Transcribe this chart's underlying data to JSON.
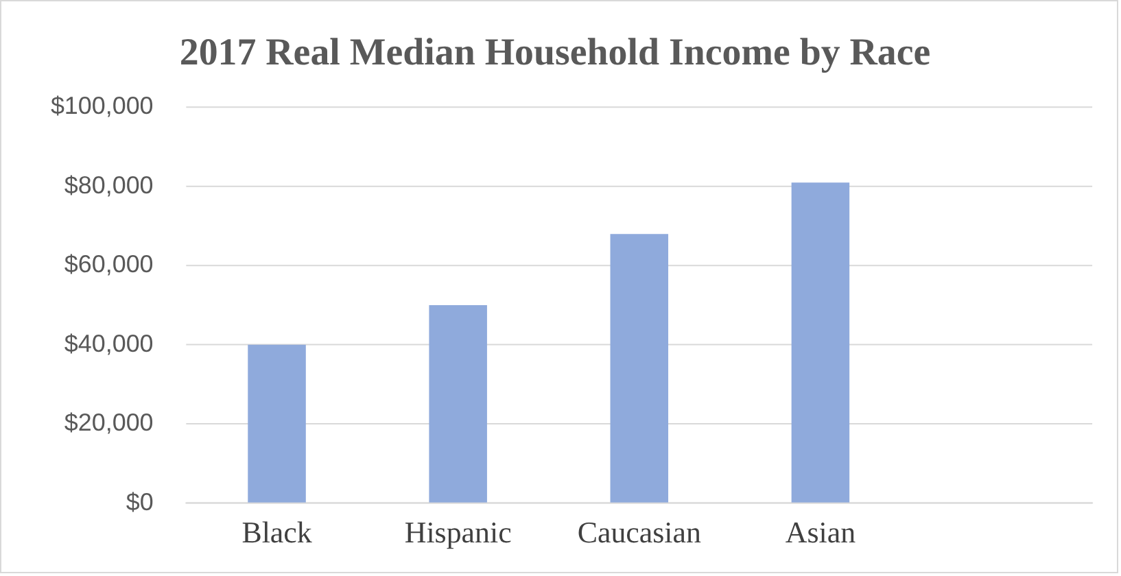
{
  "chart_data": {
    "type": "bar",
    "title": "2017 Real Median Household Income by Race",
    "categories": [
      "Black",
      "Hispanic",
      "Caucasian",
      "Asian",
      null
    ],
    "values": [
      40000,
      50000,
      68000,
      81000,
      null
    ],
    "color": "#8faadc",
    "ylim": [
      0,
      100000
    ],
    "yticks": [
      {
        "value": 0,
        "label": "$0"
      },
      {
        "value": 20000,
        "label": "$20,000"
      },
      {
        "value": 40000,
        "label": "$40,000"
      },
      {
        "value": 60000,
        "label": "$60,000"
      },
      {
        "value": 80000,
        "label": "$80,000"
      },
      {
        "value": 100000,
        "label": "$100,000"
      }
    ],
    "grid": "y",
    "legend": false
  }
}
